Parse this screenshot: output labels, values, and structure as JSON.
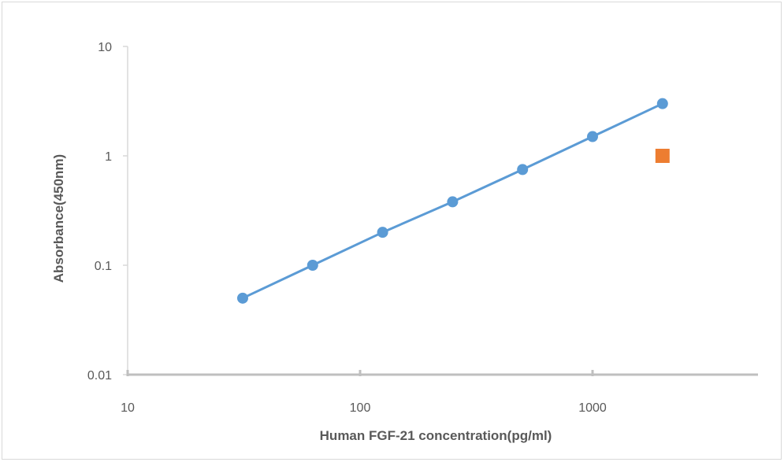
{
  "chart_data": {
    "type": "scatter",
    "title": "",
    "xlabel": "Human FGF-21 concentration(pg/ml)",
    "ylabel": "Absorbance(450nm)",
    "xscale": "log",
    "yscale": "log",
    "xlim": [
      10,
      5000
    ],
    "ylim": [
      0.01,
      10
    ],
    "xticks": [
      10,
      100,
      1000
    ],
    "xtick_labels": [
      "10",
      "100",
      "1000"
    ],
    "yticks": [
      0.01,
      0.1,
      1,
      10
    ],
    "ytick_labels": [
      "0.01",
      "0.1",
      "1",
      "10"
    ],
    "grid": false,
    "legend": false,
    "series": [
      {
        "style": "line+circle-markers",
        "color": "#5b9bd5",
        "x": [
          31.25,
          62.5,
          125,
          250,
          500,
          1000,
          2000
        ],
        "y": [
          0.05,
          0.1,
          0.2,
          0.38,
          0.75,
          1.5,
          3.0
        ]
      },
      {
        "style": "square-marker",
        "color": "#ed7d31",
        "x": [
          2000
        ],
        "y": [
          1.0
        ]
      }
    ]
  }
}
